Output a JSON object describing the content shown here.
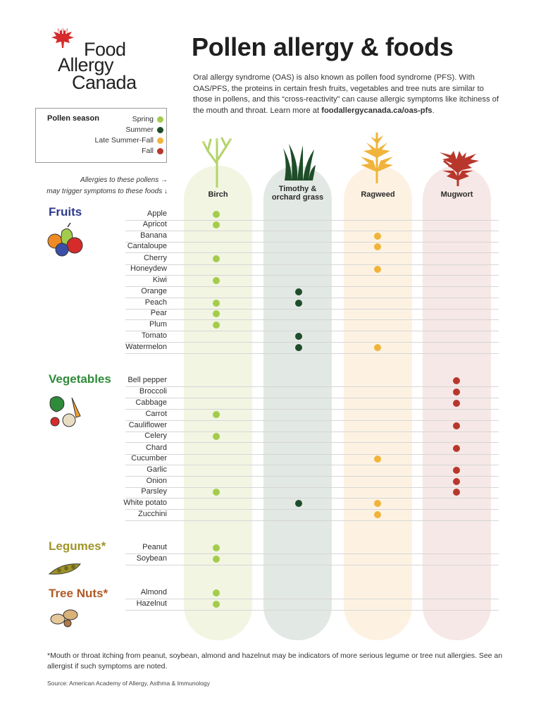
{
  "logo": {
    "line1": "Food",
    "line2": "Allergy",
    "line3": "Canada"
  },
  "title": "Pollen allergy & foods",
  "intro": {
    "text": "Oral allergy syndrome (OAS) is also known as pollen food syndrome (PFS). With OAS/PFS, the proteins in certain fresh fruits, vegetables and tree nuts are similar to those in pollens, and this “cross-reactivity” can cause allergic symptoms like itchiness of the mouth and throat. Learn more at ",
    "link": "foodallergycanada.ca/oas-pfs",
    "end": "."
  },
  "legend": {
    "title": "Pollen season",
    "items": [
      {
        "label": "Spring",
        "color": "#a4cc4c"
      },
      {
        "label": "Summer",
        "color": "#1f4d2a"
      },
      {
        "label": "Late Summer-Fall",
        "color": "#f0b43c"
      },
      {
        "label": "Fall",
        "color": "#b8372c"
      }
    ]
  },
  "hints": {
    "line1": "Allergies to these pollens →",
    "line2": "may trigger symptoms to these foods ↓"
  },
  "pollens": [
    {
      "name": "Birch",
      "bg": "#f1f5e2",
      "dot": "#a4cc4c"
    },
    {
      "name": "Timothy &\norchard grass",
      "bg": "#e2e8e3",
      "dot": "#1f4d2a"
    },
    {
      "name": "Ragweed",
      "bg": "#fdf2e2",
      "dot": "#f0b43c"
    },
    {
      "name": "Mugwort",
      "bg": "#f6e8e6",
      "dot": "#b8372c"
    }
  ],
  "categories": [
    {
      "name": "Fruits",
      "color": "#2e3a8c",
      "foods": [
        {
          "name": "Apple",
          "pollens": [
            0
          ]
        },
        {
          "name": "Apricot",
          "pollens": [
            0
          ]
        },
        {
          "name": "Banana",
          "pollens": [
            2
          ]
        },
        {
          "name": "Cantaloupe",
          "pollens": [
            2
          ]
        },
        {
          "name": "Cherry",
          "pollens": [
            0
          ]
        },
        {
          "name": "Honeydew",
          "pollens": [
            2
          ]
        },
        {
          "name": "Kiwi",
          "pollens": [
            0
          ]
        },
        {
          "name": "Orange",
          "pollens": [
            1
          ]
        },
        {
          "name": "Peach",
          "pollens": [
            0,
            1
          ]
        },
        {
          "name": "Pear",
          "pollens": [
            0
          ]
        },
        {
          "name": "Plum",
          "pollens": [
            0
          ]
        },
        {
          "name": "Tomato",
          "pollens": [
            1
          ]
        },
        {
          "name": "Watermelon",
          "pollens": [
            1,
            2
          ]
        }
      ]
    },
    {
      "name": "Vegetables",
      "color": "#2e8b3a",
      "foods": [
        {
          "name": "Bell pepper",
          "pollens": [
            3
          ]
        },
        {
          "name": "Broccoli",
          "pollens": [
            3
          ]
        },
        {
          "name": "Cabbage",
          "pollens": [
            3
          ]
        },
        {
          "name": "Carrot",
          "pollens": [
            0
          ]
        },
        {
          "name": "Cauliflower",
          "pollens": [
            3
          ]
        },
        {
          "name": "Celery",
          "pollens": [
            0
          ]
        },
        {
          "name": "Chard",
          "pollens": [
            3
          ]
        },
        {
          "name": "Cucumber",
          "pollens": [
            2
          ]
        },
        {
          "name": "Garlic",
          "pollens": [
            3
          ]
        },
        {
          "name": "Onion",
          "pollens": [
            3
          ]
        },
        {
          "name": "Parsley",
          "pollens": [
            0,
            3
          ]
        },
        {
          "name": "White potato",
          "pollens": [
            1,
            2
          ]
        },
        {
          "name": "Zucchini",
          "pollens": [
            2
          ]
        }
      ]
    },
    {
      "name": "Legumes*",
      "color": "#a0942a",
      "foods": [
        {
          "name": "Peanut",
          "pollens": [
            0
          ]
        },
        {
          "name": "Soybean",
          "pollens": [
            0
          ]
        }
      ]
    },
    {
      "name": "Tree Nuts*",
      "color": "#b05a24",
      "foods": [
        {
          "name": "Almond",
          "pollens": [
            0
          ]
        },
        {
          "name": "Hazelnut",
          "pollens": [
            0
          ]
        }
      ]
    }
  ],
  "footnote": "*Mouth or throat itching from peanut, soybean, almond and hazelnut may be indicators of more serious legume or tree nut allergies. See an allergist if such symptoms are noted.",
  "source": "Source: American Academy of Allergy, Asthma & Immunology"
}
